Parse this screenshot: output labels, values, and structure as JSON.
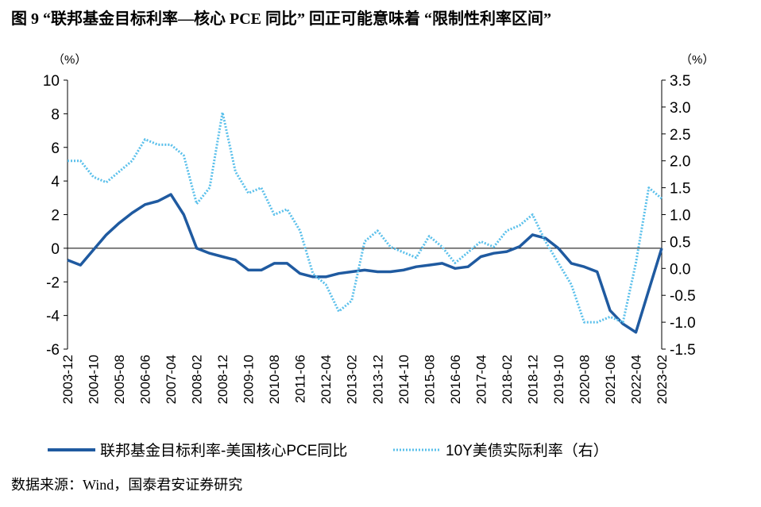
{
  "chart_data": {
    "type": "line",
    "title": "图  9 “联邦基金目标利率—核心 PCE 同比” 回正可能意味着 “限制性利率区间”",
    "y_unit": "（%）",
    "y2_unit": "（%）",
    "source": "数据来源：Wind，国泰君安证券研究",
    "categories": [
      "2003-12",
      null,
      "2004-10",
      null,
      "2005-08",
      null,
      "2006-06",
      null,
      "2007-04",
      null,
      "2008-02",
      null,
      "2008-12",
      null,
      "2009-10",
      null,
      "2010-08",
      null,
      "2011-06",
      null,
      "2012-04",
      null,
      "2013-02",
      null,
      "2013-12",
      null,
      "2014-10",
      null,
      "2015-08",
      null,
      "2016-06",
      null,
      "2017-04",
      null,
      "2018-02",
      null,
      "2018-12",
      null,
      "2019-10",
      null,
      "2020-08",
      null,
      "2021-06",
      null,
      "2022-04",
      null,
      "2023-02"
    ],
    "series": [
      {
        "name": "联邦基金目标利率-美国核心PCE同比",
        "color": "#1f5aa0",
        "values": [
          -0.7,
          -1.0,
          -0.1,
          0.8,
          1.5,
          2.1,
          2.6,
          2.8,
          3.2,
          2.0,
          0.0,
          -0.3,
          -0.5,
          -0.7,
          -1.3,
          -1.3,
          -0.9,
          -0.9,
          -1.5,
          -1.7,
          -1.7,
          -1.5,
          -1.4,
          -1.3,
          -1.4,
          -1.4,
          -1.3,
          -1.1,
          -1.0,
          -0.9,
          -1.2,
          -1.1,
          -0.5,
          -0.3,
          -0.2,
          0.1,
          0.8,
          0.6,
          0.0,
          -0.9,
          -1.1,
          -1.4,
          -3.7,
          -4.5,
          -5.0,
          -2.5,
          0.0
        ]
      },
      {
        "name": "10Y美债实际利率（右）",
        "color": "#5bc0eb",
        "axis": "y2",
        "values": [
          2.0,
          2.0,
          1.7,
          1.6,
          1.8,
          2.0,
          2.4,
          2.3,
          2.3,
          2.1,
          1.2,
          1.5,
          2.9,
          1.8,
          1.4,
          1.5,
          1.0,
          1.1,
          0.7,
          -0.1,
          -0.3,
          -0.8,
          -0.6,
          0.5,
          0.7,
          0.4,
          0.3,
          0.2,
          0.6,
          0.4,
          0.1,
          0.3,
          0.5,
          0.4,
          0.7,
          0.8,
          1.0,
          0.5,
          0.1,
          -0.3,
          -1.0,
          -1.0,
          -0.9,
          -1.0,
          0.1,
          1.5,
          1.3
        ]
      }
    ],
    "ylim": [
      -6,
      10
    ],
    "yticks": [
      -6,
      -4,
      -2,
      0,
      2,
      4,
      6,
      8,
      10
    ],
    "y2lim": [
      -1.5,
      3.5
    ],
    "y2ticks": [
      -1.5,
      {
        "value": -1,
        "label": "-1.0"
      },
      -0.5,
      {
        "value": 0,
        "label": "0.0"
      },
      0.5,
      {
        "value": 1,
        "label": "1.0"
      },
      1.5,
      {
        "value": 2,
        "label": "2.0"
      },
      2.5,
      {
        "value": 3,
        "label": "3.0"
      },
      3.5
    ],
    "legend": "bottom"
  }
}
